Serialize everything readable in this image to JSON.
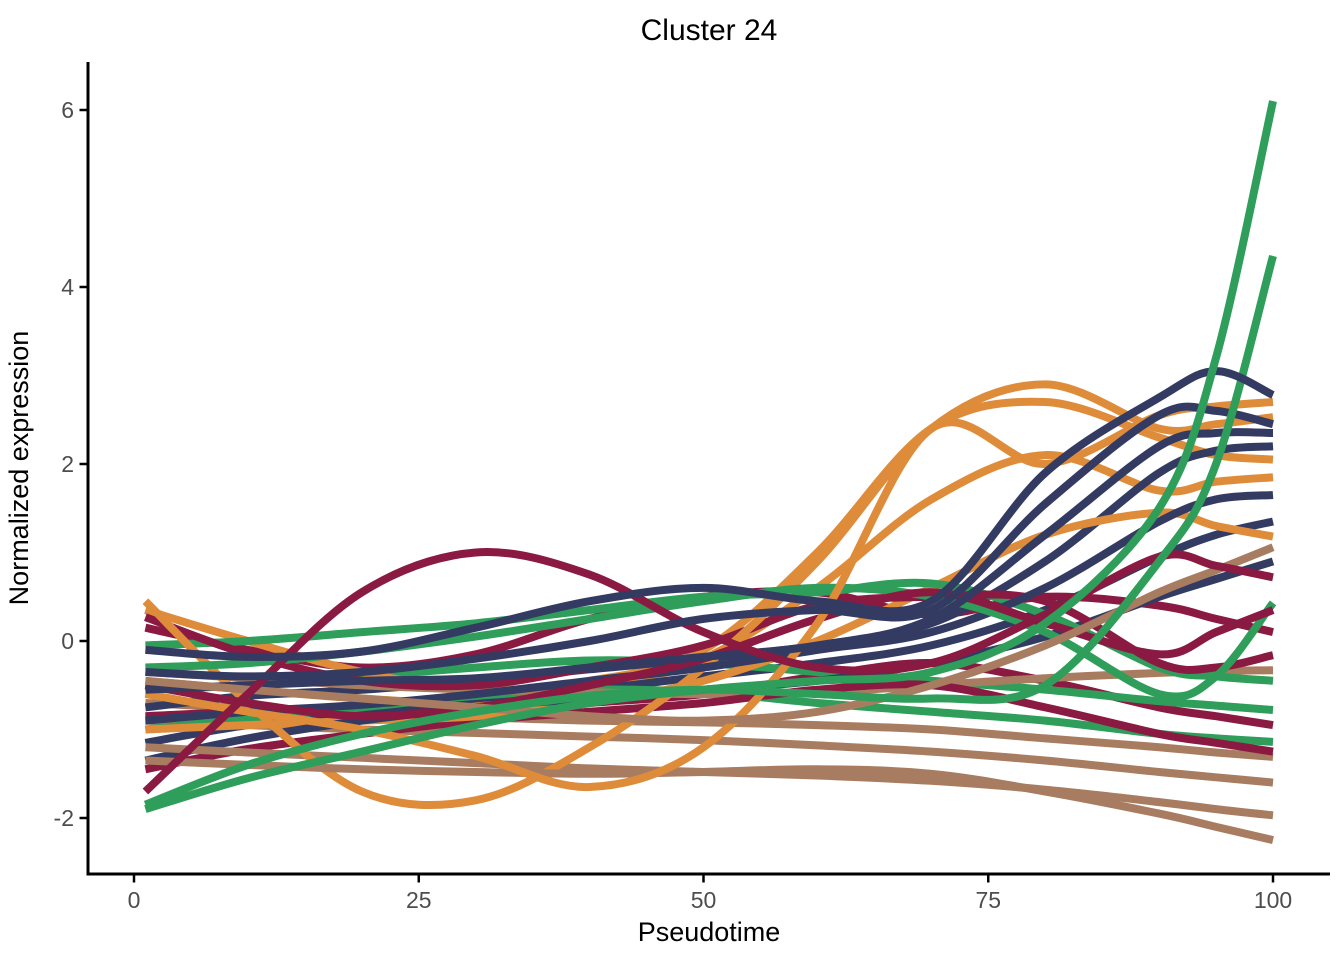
{
  "chart_data": {
    "type": "line",
    "title": "Cluster 24",
    "xlabel": "Pseudotime",
    "ylabel": "Normalized expression",
    "xlim": [
      0,
      100
    ],
    "ylim": [
      -2.6,
      6.5
    ],
    "x_ticks": [
      0,
      25,
      50,
      75,
      100
    ],
    "y_ticks": [
      -2,
      0,
      2,
      4,
      6
    ],
    "grid": false,
    "legend": "none",
    "palette": {
      "navy": "#343B62",
      "orange": "#DE8C3A",
      "maroon": "#8B1A42",
      "green": "#2F9E5A",
      "brown": "#A87C60"
    },
    "x": [
      1,
      10,
      20,
      30,
      40,
      50,
      60,
      70,
      80,
      90,
      95,
      100
    ],
    "series": [
      {
        "id": "line-01",
        "color": "brown",
        "values": [
          -0.7,
          -0.76,
          -0.82,
          -0.86,
          -0.9,
          -0.92,
          -0.95,
          -1.0,
          -1.1,
          -1.2,
          -1.26,
          -1.31
        ]
      },
      {
        "id": "line-02",
        "color": "maroon",
        "values": [
          -0.85,
          -0.8,
          -0.78,
          -0.8,
          -0.7,
          -0.6,
          -0.4,
          -0.25,
          -0.45,
          -0.75,
          -0.85,
          -0.95
        ]
      },
      {
        "id": "line-03",
        "color": "orange",
        "values": [
          -0.45,
          -0.55,
          -0.65,
          -0.7,
          -0.55,
          -0.2,
          0.6,
          1.6,
          2.1,
          1.7,
          1.8,
          1.85
        ]
      },
      {
        "id": "line-04",
        "color": "navy",
        "values": [
          -1.15,
          -0.95,
          -0.8,
          -0.65,
          -0.55,
          -0.4,
          -0.25,
          -0.05,
          0.35,
          0.95,
          1.2,
          1.35
        ]
      },
      {
        "id": "line-05",
        "color": "green",
        "values": [
          -0.55,
          -0.5,
          -0.4,
          -0.3,
          -0.22,
          -0.25,
          -0.35,
          -0.45,
          -0.55,
          -0.68,
          -0.73,
          -0.78
        ]
      },
      {
        "id": "line-06",
        "color": "brown",
        "values": [
          -0.9,
          -0.95,
          -1.0,
          -1.04,
          -1.08,
          -1.12,
          -1.18,
          -1.25,
          -1.35,
          -1.48,
          -1.54,
          -1.6
        ]
      },
      {
        "id": "line-07",
        "color": "maroon",
        "values": [
          0.15,
          -0.1,
          -0.3,
          -0.15,
          0.25,
          0.5,
          0.55,
          0.3,
          0.5,
          0.4,
          0.25,
          0.1
        ]
      },
      {
        "id": "line-08",
        "color": "orange",
        "values": [
          0.35,
          0.0,
          -0.35,
          -0.55,
          -0.45,
          -0.1,
          1.0,
          2.4,
          2.7,
          2.3,
          2.1,
          2.05
        ]
      },
      {
        "id": "line-09",
        "color": "navy",
        "values": [
          -0.75,
          -0.62,
          -0.55,
          -0.45,
          -0.32,
          -0.2,
          -0.05,
          0.2,
          0.9,
          1.9,
          2.15,
          2.2
        ]
      },
      {
        "id": "line-10",
        "color": "green",
        "values": [
          -1.0,
          -0.88,
          -0.75,
          -0.62,
          -0.55,
          -0.58,
          -0.7,
          -0.8,
          -0.9,
          -1.05,
          -1.1,
          -1.14
        ]
      },
      {
        "id": "line-11",
        "color": "brown",
        "values": [
          -0.35,
          -0.42,
          -0.5,
          -0.55,
          -0.58,
          -0.6,
          -0.58,
          -0.5,
          -0.42,
          -0.36,
          -0.34,
          -0.33
        ]
      },
      {
        "id": "line-12",
        "color": "maroon",
        "values": [
          -1.45,
          -1.22,
          -1.05,
          -0.9,
          -0.8,
          -0.7,
          -0.55,
          -0.5,
          -0.75,
          -1.05,
          -1.15,
          -1.25
        ]
      },
      {
        "id": "line-13",
        "color": "orange",
        "values": [
          -1.0,
          -0.95,
          -0.9,
          -0.85,
          -0.7,
          -0.45,
          0.0,
          0.6,
          1.2,
          1.45,
          1.3,
          1.18
        ]
      },
      {
        "id": "line-14",
        "color": "navy",
        "values": [
          -1.35,
          -1.1,
          -0.9,
          -0.75,
          -0.65,
          -0.55,
          -0.45,
          -0.25,
          0.05,
          0.5,
          0.7,
          0.9
        ]
      },
      {
        "id": "line-15",
        "color": "green",
        "values": [
          -0.05,
          0.0,
          0.1,
          0.2,
          0.35,
          0.5,
          0.55,
          0.65,
          0.3,
          -0.3,
          -0.4,
          -0.45
        ]
      },
      {
        "id": "line-16",
        "color": "brown",
        "values": [
          -1.2,
          -1.26,
          -1.32,
          -1.38,
          -1.44,
          -1.48,
          -1.52,
          -1.58,
          -1.68,
          -1.82,
          -1.9,
          -1.97
        ]
      },
      {
        "id": "line-17",
        "color": "maroon",
        "values": [
          0.27,
          -0.15,
          -0.45,
          -0.5,
          -0.3,
          -0.05,
          0.4,
          0.5,
          0.45,
          -0.25,
          -0.3,
          -0.16
        ]
      },
      {
        "id": "line-18",
        "color": "orange",
        "values": [
          0.45,
          -0.7,
          -1.7,
          -1.8,
          -1.2,
          -0.3,
          0.9,
          2.4,
          2.9,
          2.4,
          2.45,
          2.53
        ]
      },
      {
        "id": "line-19",
        "color": "navy",
        "values": [
          -0.9,
          -0.8,
          -0.72,
          -0.6,
          -0.45,
          -0.3,
          -0.1,
          0.1,
          0.6,
          1.35,
          1.6,
          1.65
        ]
      },
      {
        "id": "line-20",
        "color": "green",
        "values": [
          -0.3,
          -0.25,
          -0.12,
          0.05,
          0.25,
          0.45,
          0.6,
          0.5,
          0.1,
          -0.6,
          -0.4,
          0.43
        ]
      },
      {
        "id": "line-21",
        "color": "brown",
        "values": [
          -1.35,
          -1.4,
          -1.45,
          -1.48,
          -1.5,
          -1.48,
          -1.45,
          -1.5,
          -1.7,
          -1.95,
          -2.1,
          -2.25
        ]
      },
      {
        "id": "line-22",
        "color": "maroon",
        "values": [
          -0.5,
          -0.7,
          -0.85,
          -0.75,
          -0.5,
          -0.2,
          0.25,
          0.55,
          0.2,
          -0.15,
          0.1,
          0.35
        ]
      },
      {
        "id": "line-23",
        "color": "orange",
        "values": [
          -0.6,
          -0.8,
          -1.0,
          -1.3,
          -1.65,
          -1.2,
          0.2,
          2.4,
          2.0,
          2.55,
          2.65,
          2.7
        ]
      },
      {
        "id": "line-24",
        "color": "navy",
        "values": [
          -0.55,
          -0.5,
          -0.45,
          -0.42,
          -0.3,
          -0.18,
          -0.05,
          0.25,
          1.2,
          2.2,
          2.35,
          2.35
        ]
      },
      {
        "id": "line-25",
        "color": "brown",
        "values": [
          -0.45,
          -0.55,
          -0.65,
          -0.75,
          -0.85,
          -0.9,
          -0.8,
          -0.5,
          -0.05,
          0.55,
          0.8,
          1.06
        ]
      },
      {
        "id": "line-26",
        "color": "maroon",
        "values": [
          -1.7,
          -0.6,
          0.55,
          1.0,
          0.75,
          0.1,
          -0.3,
          -0.25,
          0.3,
          0.95,
          0.85,
          0.72
        ]
      },
      {
        "id": "line-27",
        "color": "navy",
        "values": [
          -0.35,
          -0.4,
          -0.35,
          -0.2,
          0.0,
          0.25,
          0.35,
          0.35,
          1.55,
          2.55,
          2.6,
          2.45
        ]
      },
      {
        "id": "line-28",
        "color": "green",
        "values": [
          -1.85,
          -1.4,
          -1.05,
          -0.8,
          -0.62,
          -0.55,
          -0.6,
          -0.65,
          -0.5,
          0.9,
          2.0,
          4.35
        ]
      },
      {
        "id": "line-29",
        "color": "navy",
        "values": [
          -0.1,
          -0.18,
          -0.12,
          0.15,
          0.45,
          0.6,
          0.45,
          0.45,
          1.9,
          2.75,
          3.05,
          2.78
        ]
      },
      {
        "id": "line-30",
        "color": "green",
        "values": [
          -1.9,
          -1.55,
          -1.25,
          -0.95,
          -0.7,
          -0.55,
          -0.45,
          -0.35,
          0.2,
          1.5,
          3.2,
          6.1
        ]
      }
    ]
  },
  "axis_style": {
    "line_color": "#000000",
    "tick_text_color": "#4d4d4d"
  }
}
